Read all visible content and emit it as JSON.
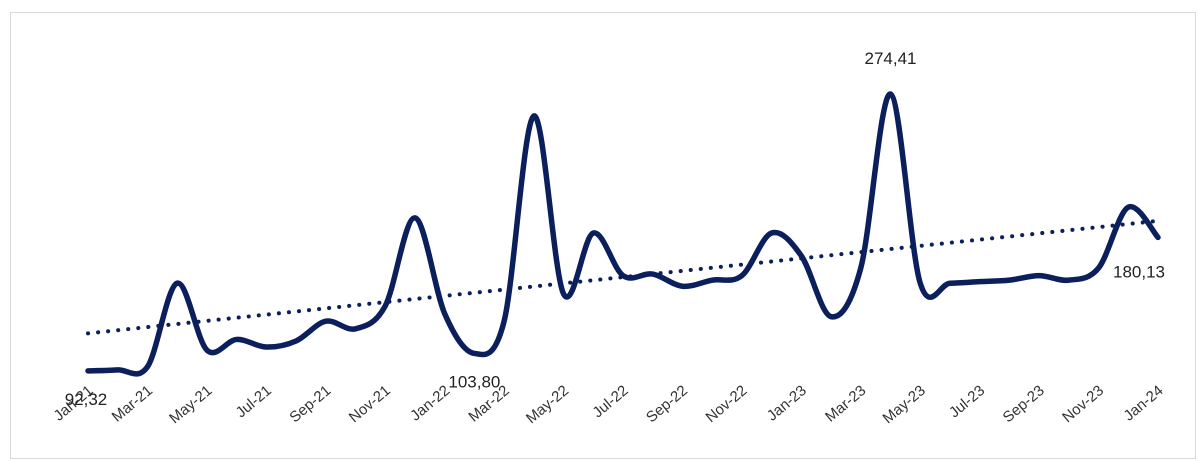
{
  "chart_data": {
    "type": "line",
    "title": "",
    "xlabel": "",
    "ylabel": "",
    "grid": false,
    "legend": "none",
    "tick_labels": [
      "Jan-21",
      "Mar-21",
      "May-21",
      "Jul-21",
      "Sep-21",
      "Nov-21",
      "Jan-22",
      "Mar-22",
      "May-22",
      "Jul-22",
      "Sep-22",
      "Nov-22",
      "Jan-23",
      "Mar-23",
      "May-23",
      "Jul-23",
      "Sep-23",
      "Nov-23",
      "Jan-24"
    ],
    "ylim": [
      60,
      310
    ],
    "series": [
      {
        "color": "#0b1f5c",
        "values": [
          [
            "2021-01-01",
            92.32
          ],
          [
            "2021-02-01",
            93
          ],
          [
            "2021-03-01",
            95
          ],
          [
            "2021-04-01",
            150
          ],
          [
            "2021-05-01",
            106
          ],
          [
            "2021-06-01",
            113
          ],
          [
            "2021-07-01",
            108
          ],
          [
            "2021-08-01",
            112
          ],
          [
            "2021-09-01",
            125
          ],
          [
            "2021-10-01",
            120
          ],
          [
            "2021-11-01",
            135
          ],
          [
            "2021-12-01",
            193
          ],
          [
            "2022-01-01",
            130
          ],
          [
            "2022-02-01",
            103.8
          ],
          [
            "2022-03-01",
            125
          ],
          [
            "2022-04-01",
            260
          ],
          [
            "2022-05-01",
            143
          ],
          [
            "2022-06-01",
            183
          ],
          [
            "2022-07-01",
            155
          ],
          [
            "2022-08-01",
            156
          ],
          [
            "2022-09-01",
            148
          ],
          [
            "2022-10-01",
            152
          ],
          [
            "2022-11-01",
            155
          ],
          [
            "2022-12-01",
            183
          ],
          [
            "2023-01-01",
            168
          ],
          [
            "2023-02-01",
            128
          ],
          [
            "2023-03-01",
            160
          ],
          [
            "2023-04-01",
            274.41
          ],
          [
            "2023-05-01",
            150
          ],
          [
            "2023-06-01",
            150
          ],
          [
            "2023-07-01",
            151
          ],
          [
            "2023-08-01",
            152
          ],
          [
            "2023-09-01",
            155
          ],
          [
            "2023-10-01",
            152
          ],
          [
            "2023-11-01",
            160
          ],
          [
            "2023-12-01",
            200
          ],
          [
            "2024-01-01",
            180.13
          ]
        ]
      }
    ],
    "trendline": {
      "style": "dotted",
      "color": "#0b1f5c",
      "from": [
        "2021-01-01",
        117
      ],
      "to": [
        "2024-01-01",
        191
      ]
    },
    "annotations": [
      {
        "text": "92,32",
        "x": "2021-01-01",
        "y": 92.32,
        "position": "below"
      },
      {
        "text": "103,80",
        "x": "2022-02-01",
        "y": 103.8,
        "position": "below"
      },
      {
        "text": "274,41",
        "x": "2023-04-01",
        "y": 274.41,
        "position": "above"
      },
      {
        "text": "180,13",
        "x": "2024-01-01",
        "y": 180.13,
        "position": "below-right"
      }
    ]
  }
}
